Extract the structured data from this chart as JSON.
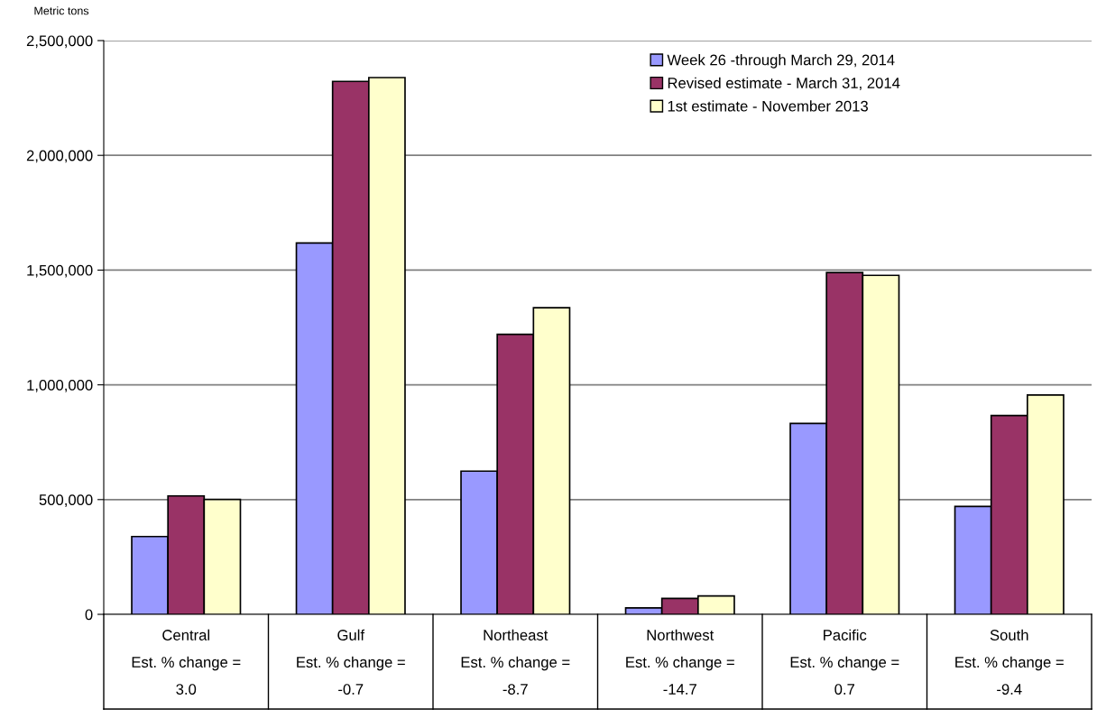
{
  "chart_data": {
    "type": "bar",
    "ylabel": "Metric tons",
    "categories": [
      "Central\nEst. % change =\n3.0",
      "Gulf\nEst. % change =\n-0.7",
      "Northeast\nEst. % change =\n-8.7",
      "Northwest\nEst. % change =\n-14.7",
      "Pacific\nEst. % change =\n0.7",
      "South\nEst. % change =\n-9.4"
    ],
    "series": [
      {
        "name": "Week 26 -through March 29, 2014",
        "color": "#9999ff",
        "values": [
          339000,
          1618000,
          624000,
          28000,
          832000,
          470000
        ]
      },
      {
        "name": "Revised estimate - March 31, 2014",
        "color": "#993366",
        "values": [
          516000,
          2322000,
          1220000,
          69000,
          1489000,
          866000
        ]
      },
      {
        "name": "1st estimate - November 2013",
        "color": "#ffffcc",
        "values": [
          501000,
          2339000,
          1336000,
          80000,
          1477000,
          956000
        ]
      }
    ],
    "ylim": [
      0,
      2500000
    ],
    "yticks": [
      {
        "value": 0,
        "label": "0"
      },
      {
        "value": 500000,
        "label": "500,000"
      },
      {
        "value": 1000000,
        "label": "1,000,000"
      },
      {
        "value": 1500000,
        "label": "1,500,000"
      },
      {
        "value": 2000000,
        "label": "2,000,000"
      },
      {
        "value": 2500000,
        "label": "2,500,000"
      }
    ],
    "grid": "y",
    "legend": "top right"
  }
}
